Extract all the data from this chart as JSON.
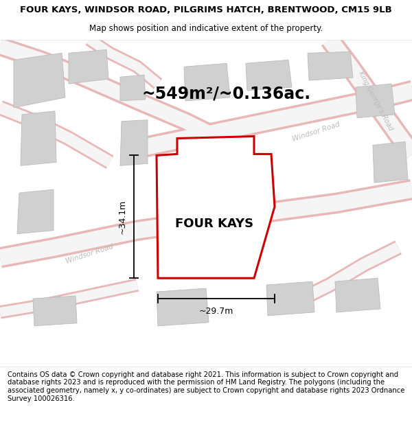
{
  "title_line1": "FOUR KAYS, WINDSOR ROAD, PILGRIMS HATCH, BRENTWOOD, CM15 9LB",
  "title_line2": "Map shows position and indicative extent of the property.",
  "property_label": "FOUR KAYS",
  "area_label": "~549m²/~0.136ac.",
  "width_label": "~29.7m",
  "height_label": "~34.1m",
  "footer_text": "Contains OS data © Crown copyright and database right 2021. This information is subject to Crown copyright and database rights 2023 and is reproduced with the permission of HM Land Registry. The polygons (including the associated geometry, namely x, y co-ordinates) are subject to Crown copyright and database rights 2023 Ordnance Survey 100026316.",
  "bg_color": "#f8f8f8",
  "road_fill": "#f5f5f5",
  "road_edge": "#e8b8b8",
  "building_fill": "#d0d0d0",
  "building_edge": "#bbbbbb",
  "property_fill": "#ffffff",
  "property_edge": "#cc0000",
  "dim_color": "#000000",
  "street_label_color": "#bbbbbb",
  "title_fontsize": 9.5,
  "subtitle_fontsize": 8.5,
  "property_label_fontsize": 13,
  "area_fontsize": 17,
  "dim_fontsize": 9,
  "footer_fontsize": 7.2,
  "street_fontsize": 7.5
}
